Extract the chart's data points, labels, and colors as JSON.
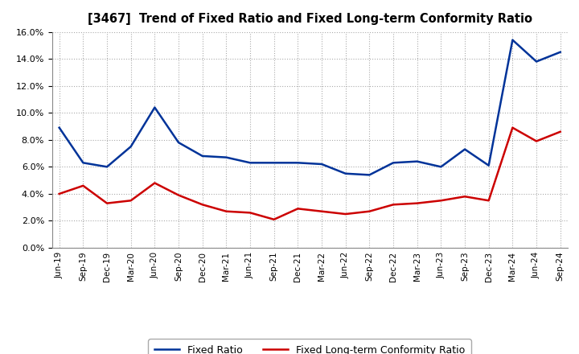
{
  "title": "[3467]  Trend of Fixed Ratio and Fixed Long-term Conformity Ratio",
  "x_labels": [
    "Jun-19",
    "Sep-19",
    "Dec-19",
    "Mar-20",
    "Jun-20",
    "Sep-20",
    "Dec-20",
    "Mar-21",
    "Jun-21",
    "Sep-21",
    "Dec-21",
    "Mar-22",
    "Jun-22",
    "Sep-22",
    "Dec-22",
    "Mar-23",
    "Jun-23",
    "Sep-23",
    "Dec-23",
    "Mar-24",
    "Jun-24",
    "Sep-24"
  ],
  "fixed_ratio": [
    8.9,
    6.3,
    6.0,
    7.5,
    10.4,
    7.8,
    6.8,
    6.7,
    6.3,
    6.3,
    6.3,
    6.2,
    5.5,
    5.4,
    6.3,
    6.4,
    6.0,
    7.3,
    6.1,
    15.4,
    13.8,
    14.5
  ],
  "fixed_lt_ratio": [
    4.0,
    4.6,
    3.3,
    3.5,
    4.8,
    3.9,
    3.2,
    2.7,
    2.6,
    2.1,
    2.9,
    2.7,
    2.5,
    2.7,
    3.2,
    3.3,
    3.5,
    3.8,
    3.5,
    8.9,
    7.9,
    8.6
  ],
  "line_color_fixed": "#003399",
  "line_color_lt": "#cc0000",
  "ylim": [
    0.0,
    16.0
  ],
  "ytick_step": 2.0,
  "background_color": "#ffffff",
  "grid_color": "#aaaaaa",
  "legend_fixed": "Fixed Ratio",
  "legend_lt": "Fixed Long-term Conformity Ratio"
}
